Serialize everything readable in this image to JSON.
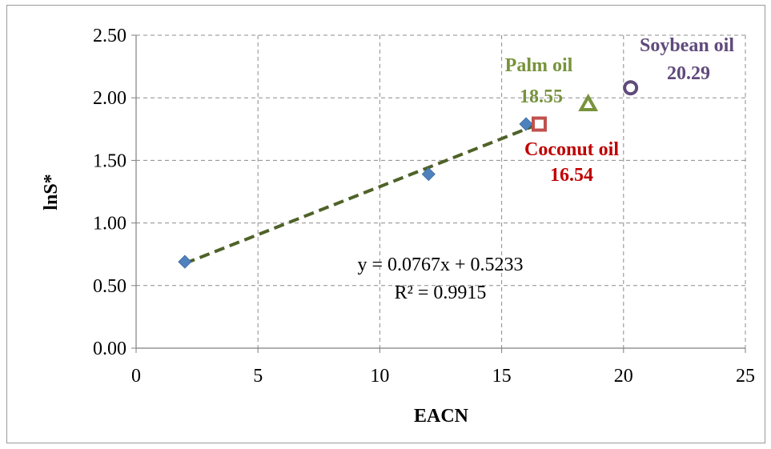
{
  "chart_data": {
    "type": "scatter",
    "xlabel": "EACN",
    "ylabel": "lnS*",
    "xlim": [
      0,
      25
    ],
    "ylim": [
      0,
      2.5
    ],
    "x_ticks": [
      "0",
      "5",
      "10",
      "15",
      "20",
      "25"
    ],
    "y_ticks": [
      "0.00",
      "0.50",
      "1.00",
      "1.50",
      "2.00",
      "2.50"
    ],
    "grid": true,
    "series": [
      {
        "marker": "diamond",
        "color": "#4f81bd",
        "points": [
          {
            "x": 2,
            "y": 0.69
          },
          {
            "x": 12,
            "y": 1.39
          },
          {
            "x": 16,
            "y": 1.79
          }
        ]
      }
    ],
    "trendline": {
      "slope": 0.0767,
      "intercept": 0.5233,
      "x_range": [
        2,
        16.5
      ],
      "color": "#4f6228",
      "style": "dashed",
      "equation_text": "y = 0.0767x + 0.5233",
      "r2_text": "R² = 0.9915"
    },
    "oils": [
      {
        "name": "Coconut oil",
        "eacn": "16.54",
        "x": 16.54,
        "y": 1.79,
        "marker": "square",
        "color": "#c0504d",
        "label_color": "#c00000"
      },
      {
        "name": "Palm oil",
        "eacn": "18.55",
        "x": 18.55,
        "y": 1.95,
        "marker": "triangle",
        "color": "#77933c",
        "label_color": "#77933c"
      },
      {
        "name": "Soybean oil",
        "eacn": "20.29",
        "x": 20.29,
        "y": 2.08,
        "marker": "circle",
        "color": "#604a7b",
        "label_color": "#604a7b"
      }
    ]
  }
}
